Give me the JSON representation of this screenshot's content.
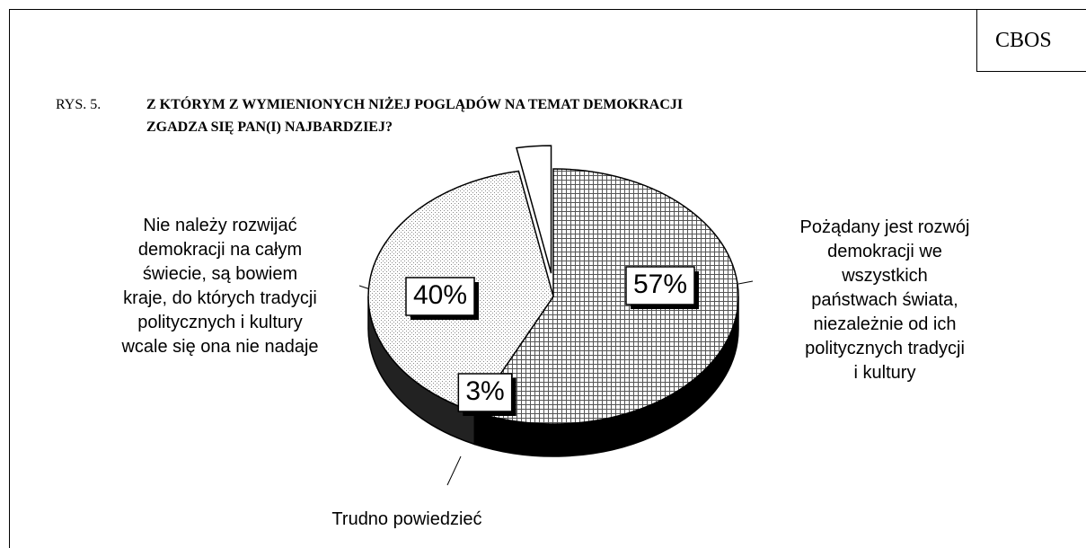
{
  "header": {
    "source": "CBOS",
    "figure": "RYS. 5."
  },
  "chart_data": {
    "type": "pie",
    "title": "Z KTÓRYM Z WYMIENIONYCH NIŻEJ POGLĄDÓW NA TEMAT DEMOKRACJI\nZGADZA SIĘ PAN(I) NAJBARDZIEJ?",
    "categories": [
      "Pożądany jest rozwój\ndemokracji we wszystkich\npaństwach świata,\nniezależnie od ich\npolitycznych tradycji\ni kultury",
      "Nie należy rozwijać\ndemokracji na całym\nświecie, są bowiem\nkraje, do których tradycji\npolitycznych i kultury\nwcale się ona nie nadaje",
      "Trudno powiedzieć"
    ],
    "values": [
      57,
      40,
      3
    ],
    "value_labels": [
      "57%",
      "40%",
      "3%"
    ]
  }
}
